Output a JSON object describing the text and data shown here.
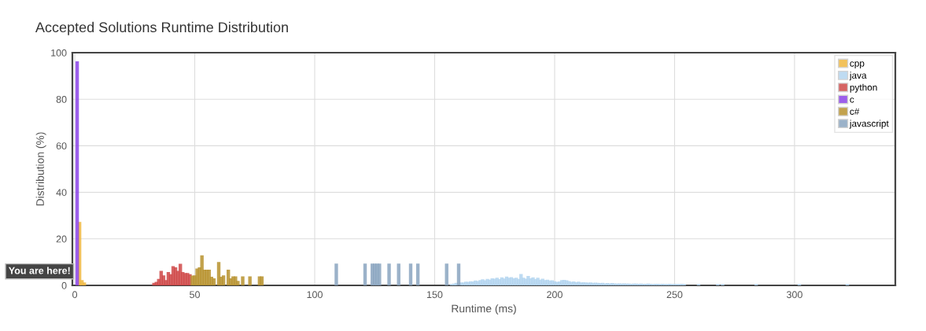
{
  "chart_data": {
    "type": "bar",
    "title": "Accepted Solutions Runtime Distribution",
    "xlabel": "Runtime (ms)",
    "ylabel": "Distribution (%)",
    "xlim": [
      -1,
      342
    ],
    "ylim": [
      0,
      100
    ],
    "xticks": [
      0,
      50,
      100,
      150,
      200,
      250,
      300
    ],
    "yticks": [
      0,
      20,
      40,
      60,
      80,
      100
    ],
    "grid": true,
    "legend": "top right",
    "annotations": [
      {
        "text": "You are here!",
        "x": 1,
        "y": 6
      }
    ],
    "series": [
      {
        "name": "cpp",
        "color": "#f0b840",
        "x": [
          2,
          3,
          4
        ],
        "values": [
          27,
          2,
          1
        ]
      },
      {
        "name": "java",
        "color": "#b3d5f0",
        "x": [
          157,
          158,
          159,
          160,
          161,
          162,
          163,
          164,
          165,
          166,
          167,
          168,
          169,
          170,
          171,
          172,
          173,
          174,
          175,
          176,
          177,
          178,
          179,
          180,
          181,
          182,
          183,
          184,
          185,
          186,
          187,
          188,
          189,
          190,
          191,
          192,
          193,
          194,
          195,
          196,
          197,
          198,
          199,
          200,
          201,
          202,
          203,
          204,
          205,
          206,
          207,
          208,
          209,
          210,
          211,
          212,
          213,
          214,
          215,
          216,
          217,
          218,
          219,
          220,
          221,
          222,
          223,
          224,
          225,
          226,
          227,
          228,
          229,
          230,
          231,
          232,
          233,
          234,
          235,
          236,
          237,
          238,
          239,
          240,
          241,
          242,
          243,
          244,
          245,
          246,
          247,
          248,
          249,
          250,
          251,
          252,
          253,
          254,
          260,
          268,
          270,
          284,
          302,
          322
        ],
        "values": [
          0.3,
          0.5,
          0.8,
          null,
          1.0,
          1.0,
          1.3,
          1.2,
          1.5,
          1.4,
          1.8,
          1.6,
          2.0,
          2.3,
          1.9,
          2.5,
          2.2,
          2.8,
          2.6,
          3.0,
          2.4,
          3.2,
          2.7,
          3.5,
          3.0,
          3.3,
          2.8,
          3.0,
          2.5,
          4.6,
          3.0,
          2.6,
          3.8,
          2.8,
          3.2,
          2.4,
          3.0,
          2.2,
          2.6,
          2.0,
          2.2,
          1.8,
          1.9,
          1.5,
          1.2,
          1.4,
          2.0,
          2.1,
          1.9,
          1.6,
          1.2,
          1.4,
          1.1,
          1.3,
          1.0,
          1.1,
          1.0,
          0.9,
          1.0,
          0.8,
          0.9,
          0.8,
          0.7,
          0.8,
          0.6,
          0.7,
          0.6,
          0.7,
          0.6,
          0.5,
          0.6,
          0.5,
          0.6,
          0.5,
          0.5,
          0.4,
          0.5,
          0.5,
          0.4,
          0.5,
          0.4,
          0.4,
          0.5,
          0.4,
          0.3,
          0.4,
          0.4,
          0.3,
          0.4,
          0.3,
          0.3,
          0.4,
          0.3,
          0.3,
          0.3,
          0.3,
          0.4,
          0.3,
          0.3,
          0.3,
          0.3,
          0.3,
          0.3,
          0.3
        ]
      },
      {
        "name": "python",
        "color": "#d04848",
        "x": [
          33,
          34,
          35,
          36,
          37,
          38,
          39,
          40,
          41,
          42,
          43,
          44,
          45,
          46,
          47,
          48
        ],
        "values": [
          0.8,
          1.2,
          2.5,
          6,
          4,
          2,
          5.5,
          4.5,
          8,
          7.5,
          6,
          9,
          5.5,
          5,
          5,
          4.5
        ]
      },
      {
        "name": "c",
        "color": "#8b44e8",
        "x": [
          1
        ],
        "values": [
          96
        ]
      },
      {
        "name": "c#",
        "color": "#b8922e",
        "x": [
          49,
          50,
          51,
          52,
          53,
          54,
          55,
          56,
          57,
          58,
          60,
          61,
          62,
          64,
          65,
          66,
          67,
          68,
          70,
          73,
          77,
          78
        ],
        "values": [
          3.9,
          4,
          7,
          7.5,
          12.6,
          6.5,
          6.5,
          6.5,
          3.4,
          2.8,
          9.8,
          3.4,
          4,
          6.5,
          2.8,
          3.6,
          3.6,
          1.7,
          3.6,
          3.6,
          3.6,
          3.6
        ]
      },
      {
        "name": "javascript",
        "color": "#8aa5c0",
        "x": [
          109,
          121,
          124,
          125,
          126,
          127,
          131,
          135,
          140,
          143,
          155,
          160
        ],
        "values": [
          9.1,
          9.1,
          9.1,
          9.1,
          9.1,
          9.1,
          9.1,
          9.1,
          9.1,
          9.1,
          9.1,
          9.1
        ]
      }
    ]
  }
}
